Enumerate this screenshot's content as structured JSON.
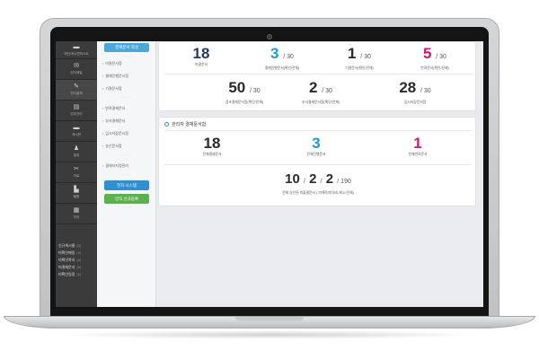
{
  "sidebar": {
    "items": [
      {
        "icon": "home-icon",
        "glyph": "▬",
        "label": "메인/게시판리스트"
      },
      {
        "icon": "mail-icon",
        "glyph": "✉",
        "label": "전자메일"
      },
      {
        "icon": "approval-icon",
        "glyph": "✎",
        "label": "전자결재"
      },
      {
        "icon": "document-icon",
        "glyph": "▤",
        "label": "업무관리"
      },
      {
        "icon": "chat-icon",
        "glyph": "▬",
        "label": "게시판"
      },
      {
        "icon": "person-icon",
        "glyph": "♟",
        "label": "일정"
      },
      {
        "icon": "tool-icon",
        "glyph": "✂",
        "label": "자료"
      },
      {
        "icon": "cart-icon",
        "glyph": "▙",
        "label": "물품"
      },
      {
        "icon": "settings-icon",
        "glyph": "▦",
        "label": "관리"
      }
    ],
    "links": [
      {
        "label": "신규게시물",
        "count": "(0)"
      },
      {
        "label": "미확인메일",
        "count": "(0)"
      },
      {
        "label": "미확인쪽지",
        "count": "(0)"
      },
      {
        "label": "미결재문서",
        "count": "(0)"
      },
      {
        "label": "미확인일정",
        "count": "(0)"
      }
    ]
  },
  "submenu": {
    "top_button": "결재문서 작성",
    "groups": [
      [
        "미결문서함",
        "결재진행문서함",
        "기결문서함"
      ],
      [
        "반려결재문서",
        "부서결재문서",
        "임시저장문서함",
        "송신문서함"
      ],
      [
        "결재자지정관리"
      ]
    ],
    "btn_system": "전자 시스템",
    "btn_register": "양식 신규등록"
  },
  "stats_top": [
    {
      "value": "18",
      "of": "",
      "label": "미결문서",
      "color": "navy"
    },
    {
      "value": "3",
      "of": "/ 30",
      "label": "결재진행문서(확인/전체)",
      "color": "blue"
    },
    {
      "value": "1",
      "of": "/ 30",
      "label": "기결문서(확인/전체)",
      "color": "dark"
    },
    {
      "value": "5",
      "of": "/ 30",
      "label": "반려문서(확인/전체)",
      "color": "pink"
    }
  ],
  "stats_mid": [
    {
      "value": "50",
      "of": "/ 30",
      "label": "참조결재문서함(확인/전체)"
    },
    {
      "value": "2",
      "of": "/ 30",
      "label": "부서결재문서함(확인/전체)"
    },
    {
      "value": "28",
      "of": "/ 30",
      "label": "임시저장문서함"
    }
  ],
  "admin": {
    "title": "관리자 결재문서함",
    "stats": [
      {
        "value": "18",
        "label": "전체결재문서",
        "color": "dark"
      },
      {
        "value": "3",
        "label": "전체진행문서",
        "color": "blue"
      },
      {
        "value": "1",
        "label": "전체반려문서",
        "color": "pink"
      }
    ],
    "combo": {
      "a": "10",
      "b": "2",
      "c": "2",
      "total": "190",
      "label": "전체 승인된 미출결문서 ( 미해독/미처리/회소/전체)"
    }
  },
  "colors": {
    "navy": "#23395d",
    "blue": "#1a9ad6",
    "dark": "#2a2a2a",
    "pink": "#d4156c",
    "sidebar": "#3b3b3b"
  }
}
